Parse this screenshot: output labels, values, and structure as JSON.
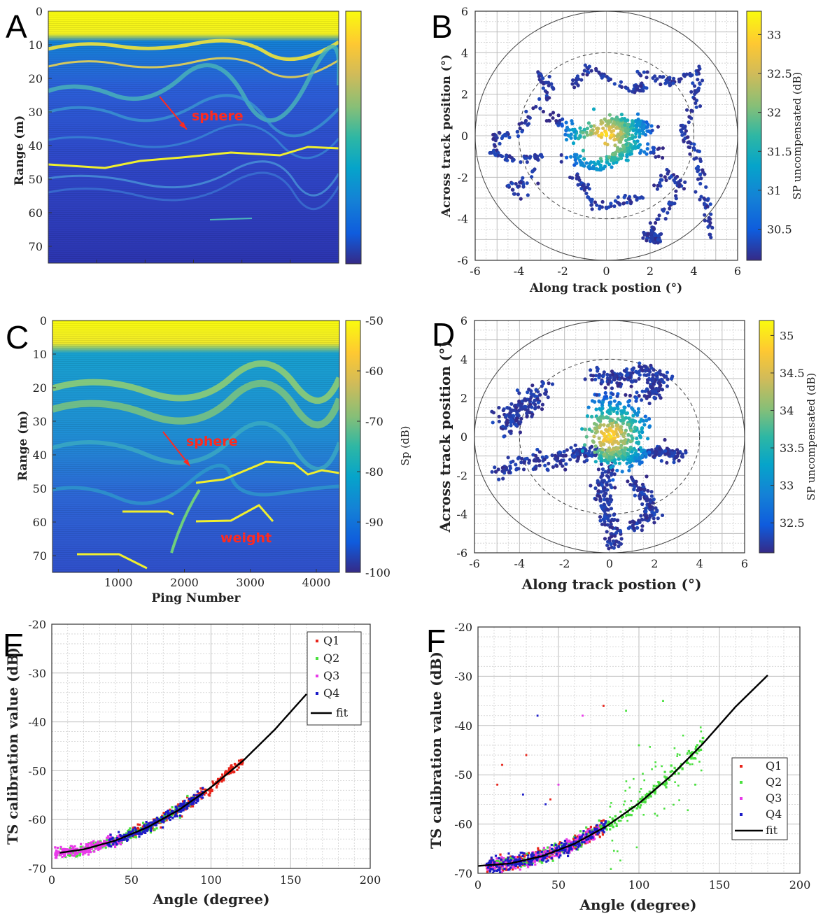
{
  "colors": {
    "parula_low": "#352a87",
    "parula_mid": "#23a7a0",
    "parula_high": "#f9fb0e",
    "annotation": "#ff2a1f",
    "Q1": "#e8251b",
    "Q2": "#4be040",
    "Q3": "#e83ae8",
    "Q4": "#1c1cc8",
    "fit": "#000000"
  },
  "chart_data": [
    {
      "panel": "A",
      "type": "heatmap",
      "title": "",
      "xlabel": "",
      "ylabel": "Range (m)",
      "ylim": [
        0,
        75
      ],
      "yticks": [
        "0",
        "10",
        "20",
        "30",
        "40",
        "50",
        "60",
        "70"
      ],
      "xtick_count": 5,
      "colorbar": {
        "ticks": [],
        "label": ""
      },
      "annotations": [
        {
          "text": "sphere",
          "at_range": 35
        }
      ]
    },
    {
      "panel": "B",
      "type": "scatter",
      "title": "",
      "xlabel": "Along track postion (°)",
      "ylabel": "Across track position (°)",
      "xlim": [
        -6,
        6
      ],
      "ylim": [
        -6,
        6
      ],
      "xticks": [
        "-6",
        "-4",
        "-2",
        "0",
        "2",
        "4",
        "6"
      ],
      "yticks": [
        "-6",
        "-4",
        "-2",
        "0",
        "2",
        "4",
        "6"
      ],
      "reference_circles": [
        {
          "radius": 6,
          "style": "solid"
        },
        {
          "radius": 4,
          "style": "dashed"
        }
      ],
      "colorbar": {
        "label": "SP uncompensated (dB)",
        "ticks": [
          "30.5",
          "31",
          "31.5",
          "32",
          "32.5",
          "33"
        ],
        "range": [
          30.1,
          33.3
        ]
      }
    },
    {
      "panel": "C",
      "type": "heatmap",
      "title": "",
      "xlabel": "Ping Number",
      "ylabel": "Range (m)",
      "xlim": [
        0,
        4350
      ],
      "ylim": [
        0,
        75
      ],
      "xticks": [
        "1000",
        "2000",
        "3000",
        "4000"
      ],
      "yticks": [
        "0",
        "10",
        "20",
        "30",
        "40",
        "50",
        "60",
        "70"
      ],
      "colorbar": {
        "label": "Sp (dB)",
        "ticks": [
          "-50",
          "-60",
          "-70",
          "-80",
          "-90",
          "-100"
        ],
        "range": [
          -100,
          -50
        ]
      },
      "annotations": [
        {
          "text": "sphere",
          "at_range": 41
        },
        {
          "text": "weight",
          "at_range": 65
        }
      ]
    },
    {
      "panel": "D",
      "type": "scatter",
      "title": "",
      "xlabel": "Along track postion (°)",
      "ylabel": "Across track position (°)",
      "xlim": [
        -6,
        6
      ],
      "ylim": [
        -6,
        6
      ],
      "xticks": [
        "-6",
        "-4",
        "-2",
        "0",
        "2",
        "4",
        "6"
      ],
      "yticks": [
        "-6",
        "-4",
        "-2",
        "0",
        "2",
        "4",
        "6"
      ],
      "reference_circles": [
        {
          "radius": 6,
          "style": "solid"
        },
        {
          "radius": 4,
          "style": "dashed"
        }
      ],
      "colorbar": {
        "label": "SP uncompensated (dB)",
        "ticks": [
          "32.5",
          "33",
          "33.5",
          "34",
          "34.5",
          "35"
        ],
        "range": [
          32.1,
          35.2
        ]
      }
    },
    {
      "panel": "E",
      "type": "scatter",
      "title": "",
      "xlabel": "Angle (degree)",
      "ylabel": "TS calibration value (dB)",
      "xlim": [
        0,
        200
      ],
      "ylim": [
        -70,
        -20
      ],
      "xticks": [
        "0",
        "50",
        "100",
        "150",
        "200"
      ],
      "yticks": [
        "-20",
        "-30",
        "-40",
        "-50",
        "-60",
        "-70"
      ],
      "legend": [
        "Q1",
        "Q2",
        "Q3",
        "Q4",
        "fit"
      ],
      "legend_position": "top-right",
      "series": [
        {
          "name": "Q1",
          "x_range": [
            50,
            120
          ],
          "trend": "fit"
        },
        {
          "name": "Q2",
          "x_range": [
            5,
            90
          ],
          "trend": "fit"
        },
        {
          "name": "Q3",
          "x_range": [
            2,
            45
          ],
          "trend": "fit"
        },
        {
          "name": "Q4",
          "x_range": [
            35,
            95
          ],
          "trend": "fit"
        }
      ],
      "fit": {
        "x": [
          5,
          20,
          40,
          60,
          80,
          100,
          120,
          140,
          160
        ],
        "y": [
          -66.8,
          -66.1,
          -64.3,
          -61.6,
          -58.0,
          -53.4,
          -48.0,
          -41.6,
          -34.3
        ]
      }
    },
    {
      "panel": "F",
      "type": "scatter",
      "title": "",
      "xlabel": "Angle (degree)",
      "ylabel": "TS calibration value (dB)",
      "xlim": [
        0,
        200
      ],
      "ylim": [
        -70,
        -20
      ],
      "xticks": [
        "0",
        "50",
        "100",
        "150",
        "200"
      ],
      "yticks": [
        "-20",
        "-30",
        "-40",
        "-50",
        "-60",
        "-70"
      ],
      "legend": [
        "Q1",
        "Q2",
        "Q3",
        "Q4",
        "fit"
      ],
      "legend_position": "right",
      "series": [
        {
          "name": "Q1",
          "x_range": [
            5,
            80
          ],
          "trend": "fit"
        },
        {
          "name": "Q2",
          "x_range": [
            5,
            140
          ],
          "trend": "fit"
        },
        {
          "name": "Q3",
          "x_range": [
            5,
            75
          ],
          "trend": "fit"
        },
        {
          "name": "Q4",
          "x_range": [
            5,
            80
          ],
          "trend": "fit"
        }
      ],
      "outliers": [
        {
          "series": "Q1",
          "x": 12,
          "y": -52
        },
        {
          "series": "Q1",
          "x": 15,
          "y": -48
        },
        {
          "series": "Q1",
          "x": 30,
          "y": -46
        },
        {
          "series": "Q1",
          "x": 45,
          "y": -55
        },
        {
          "series": "Q1",
          "x": 78,
          "y": -36
        },
        {
          "series": "Q4",
          "x": 28,
          "y": -54
        },
        {
          "series": "Q4",
          "x": 37,
          "y": -38
        },
        {
          "series": "Q4",
          "x": 42,
          "y": -56
        },
        {
          "series": "Q3",
          "x": 65,
          "y": -38
        },
        {
          "series": "Q3",
          "x": 50,
          "y": -52
        },
        {
          "series": "Q2",
          "x": 92,
          "y": -37
        },
        {
          "series": "Q2",
          "x": 115,
          "y": -35
        },
        {
          "series": "Q2",
          "x": 100,
          "y": -44
        },
        {
          "series": "Q2",
          "x": 135,
          "y": -52
        }
      ],
      "fit": {
        "x": [
          0,
          20,
          40,
          60,
          80,
          100,
          120,
          140,
          160,
          180
        ],
        "y": [
          -68.5,
          -68.0,
          -66.5,
          -64.0,
          -60.4,
          -55.8,
          -50.2,
          -43.6,
          -36.2,
          -29.8
        ]
      }
    }
  ]
}
